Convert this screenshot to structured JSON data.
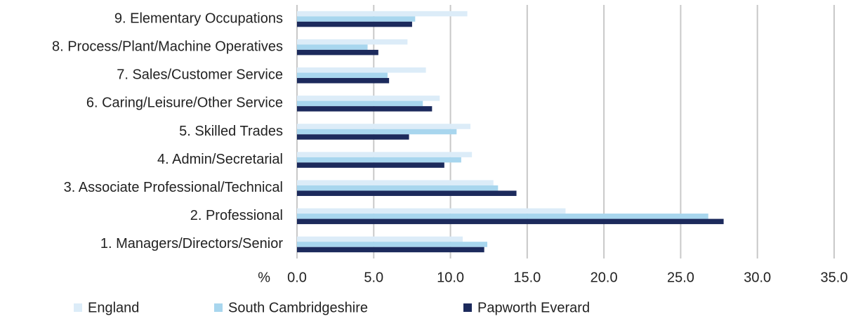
{
  "chart_data": {
    "type": "bar",
    "orientation": "horizontal",
    "categories": [
      "1. Managers/Directors/Senior",
      "2. Professional",
      "3. Associate Professional/Technical",
      "4. Admin/Secretarial",
      "5. Skilled Trades",
      "6. Caring/Leisure/Other Service",
      "7. Sales/Customer Service",
      "8. Process/Plant/Machine Operatives",
      "9. Elementary Occupations"
    ],
    "series": [
      {
        "name": "England",
        "color": "#dcecf8",
        "values": [
          10.8,
          17.5,
          12.8,
          11.4,
          11.3,
          9.3,
          8.4,
          7.2,
          11.1
        ]
      },
      {
        "name": "South Cambridgeshire",
        "color": "#a8d6ee",
        "values": [
          12.4,
          26.8,
          13.1,
          10.7,
          10.4,
          8.2,
          5.9,
          4.6,
          7.7
        ]
      },
      {
        "name": "Papworth Everard",
        "color": "#1c2a5c",
        "values": [
          12.2,
          27.8,
          14.3,
          9.6,
          7.3,
          8.8,
          6.0,
          5.3,
          7.5
        ]
      }
    ],
    "xlabel": "%",
    "xlim": [
      0,
      35
    ],
    "xticks": [
      {
        "value": 0,
        "label": "0.0"
      },
      {
        "value": 5,
        "label": "5.0"
      },
      {
        "value": 10,
        "label": "10.0"
      },
      {
        "value": 15,
        "label": "15.0"
      },
      {
        "value": 20,
        "label": "20.0"
      },
      {
        "value": 25,
        "label": "25.0"
      },
      {
        "value": 30,
        "label": "30.0"
      },
      {
        "value": 35,
        "label": "35.0"
      }
    ],
    "grid": true,
    "legend": "bottom"
  }
}
